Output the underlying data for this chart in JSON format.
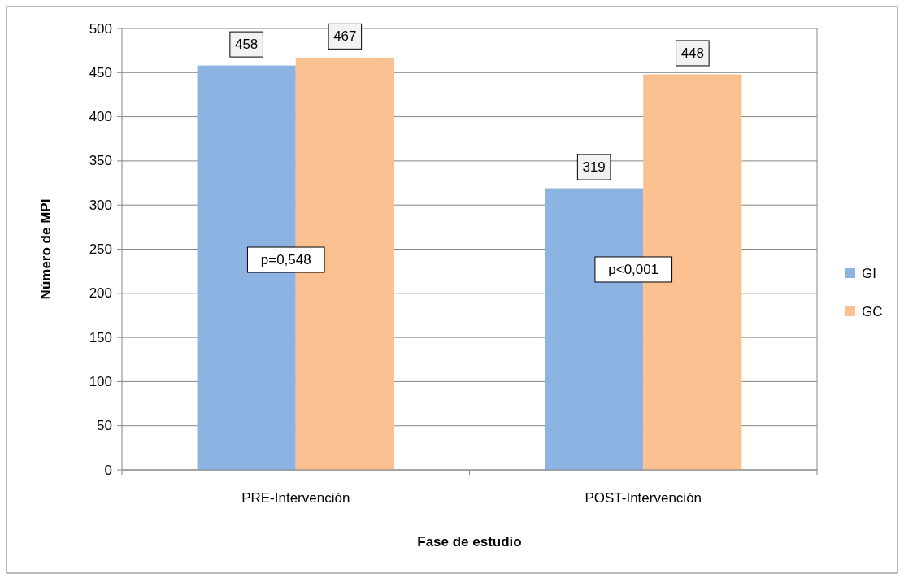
{
  "chart_data": {
    "type": "bar",
    "xlabel": "Fase de estudio",
    "ylabel": "Número de MPI",
    "categories": [
      "PRE-Intervención",
      "POST-Intervención"
    ],
    "series": [
      {
        "name": "GI",
        "color": "#8db3e2",
        "values": [
          458,
          319
        ]
      },
      {
        "name": "GC",
        "color": "#fac090",
        "values": [
          467,
          448
        ]
      }
    ],
    "ylim": [
      0,
      500
    ],
    "yticks": [
      0,
      50,
      100,
      150,
      200,
      250,
      300,
      350,
      400,
      450,
      500
    ],
    "grid": "y",
    "legend": "right",
    "data_labels": true,
    "annotations": [
      {
        "text": "p=0,548",
        "x": "PRE-Intervención",
        "y": 238
      },
      {
        "text": "p<0,001",
        "x": "POST-Intervención",
        "y": 227
      }
    ]
  }
}
